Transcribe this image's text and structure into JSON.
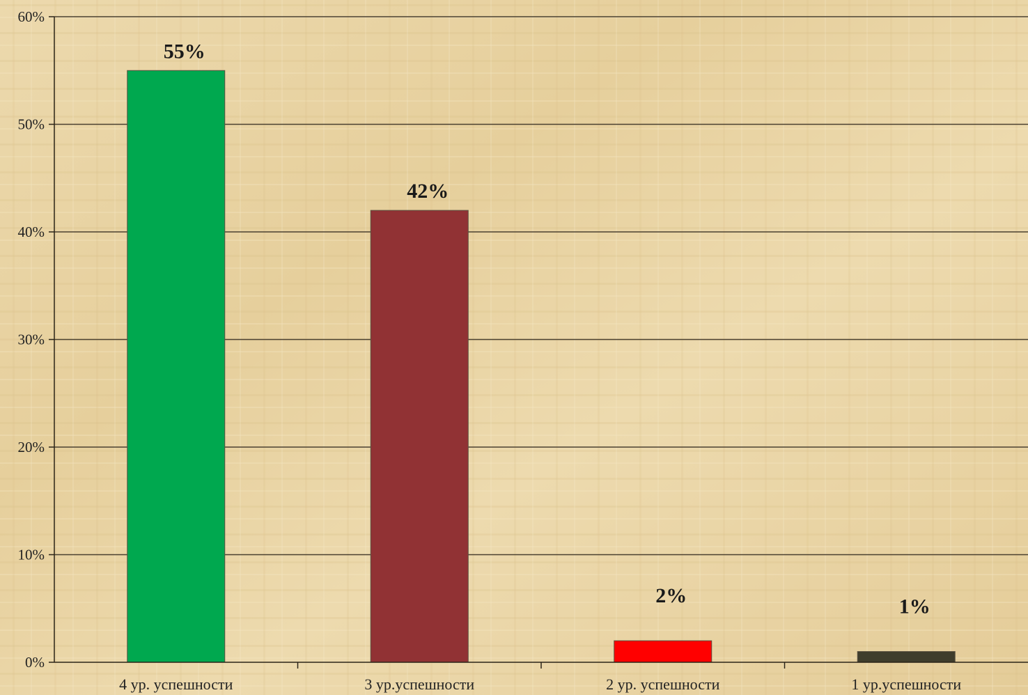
{
  "chart_data": {
    "type": "bar",
    "categories": [
      "4 ур. успешности",
      "3 ур.успешности",
      "2 ур. успешности",
      "1 ур.успешности"
    ],
    "values": [
      55,
      42,
      2,
      1
    ],
    "data_labels": [
      "55%",
      "42%",
      "2%",
      "1%"
    ],
    "colors": [
      "#00a84f",
      "#913234",
      "#ff0000",
      "#3f3d2c"
    ],
    "ylim": [
      0,
      60
    ],
    "yticks": [
      0,
      10,
      20,
      30,
      40,
      50,
      60
    ],
    "ytick_labels": [
      "0%",
      "10%",
      "20%",
      "30%",
      "40%",
      "50%",
      "60%"
    ],
    "grid": true,
    "legend": "none",
    "title": "",
    "xlabel": "",
    "ylabel": ""
  }
}
